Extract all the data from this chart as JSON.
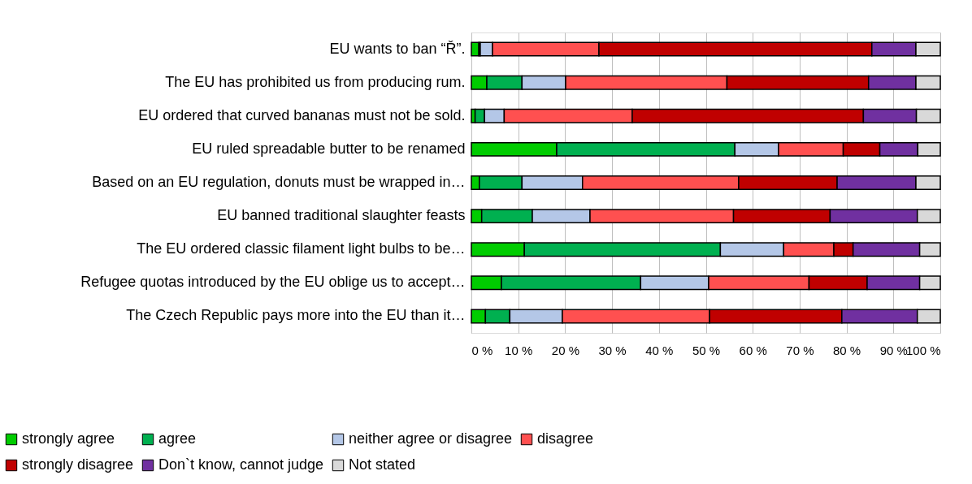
{
  "chart_data": {
    "type": "bar",
    "orientation": "horizontal",
    "stacked": true,
    "categories": [
      "EU wants to ban “Ř”.",
      "The EU has prohibited us from producing rum.",
      "EU ordered that curved bananas must not be sold.",
      "EU ruled spreadable butter to be renamed",
      "Based on an EU regulation, donuts must be wrapped in…",
      "EU banned traditional slaughter feasts",
      "The EU ordered classic filament light bulbs to be…",
      "Refugee quotas introduced by the EU oblige us to accept…",
      "The Czech Republic pays more into the EU than it…"
    ],
    "series": [
      {
        "name": "strongly agree",
        "color": "#00cc00",
        "values": [
          1.6,
          3.3,
          0.8,
          18.2,
          1.7,
          2.2,
          11.3,
          6.4,
          3.0
        ]
      },
      {
        "name": "agree",
        "color": "#00b050",
        "values": [
          0.3,
          7.5,
          2.0,
          38.0,
          9.1,
          10.8,
          41.8,
          29.7,
          5.2
        ]
      },
      {
        "name": "neither agree or disagree",
        "color": "#b4c7e7",
        "values": [
          2.6,
          9.3,
          4.2,
          9.3,
          12.9,
          12.3,
          13.5,
          14.5,
          11.2
        ]
      },
      {
        "name": "disagree",
        "color": "#ff5050",
        "values": [
          22.7,
          34.4,
          27.3,
          13.8,
          33.3,
          30.6,
          10.7,
          21.4,
          31.4
        ]
      },
      {
        "name": "strongly disagree",
        "color": "#c00000",
        "values": [
          58.2,
          30.2,
          49.3,
          7.8,
          21.0,
          20.6,
          4.1,
          12.4,
          28.2
        ]
      },
      {
        "name": "Don`t know, cannot judge",
        "color": "#7030a0",
        "values": [
          9.4,
          10.1,
          11.3,
          8.1,
          16.8,
          18.6,
          14.2,
          11.2,
          16.1
        ]
      },
      {
        "name": "Not stated",
        "color": "#d9d9d9",
        "values": [
          5.2,
          5.2,
          5.1,
          4.8,
          5.2,
          4.9,
          4.4,
          4.4,
          4.9
        ]
      }
    ],
    "xlim": [
      0,
      100
    ],
    "xticks": [
      {
        "value": 0,
        "label": "0 %"
      },
      {
        "value": 10,
        "label": "10 %"
      },
      {
        "value": 20,
        "label": "20 %"
      },
      {
        "value": 30,
        "label": "30 %"
      },
      {
        "value": 40,
        "label": "40 %"
      },
      {
        "value": 50,
        "label": "50 %"
      },
      {
        "value": 60,
        "label": "60 %"
      },
      {
        "value": 70,
        "label": "70 %"
      },
      {
        "value": 80,
        "label": "80 %"
      },
      {
        "value": 90,
        "label": "90 %"
      },
      {
        "value": 100,
        "label": "100 %"
      }
    ],
    "grid": "x",
    "legend": "bottom"
  }
}
